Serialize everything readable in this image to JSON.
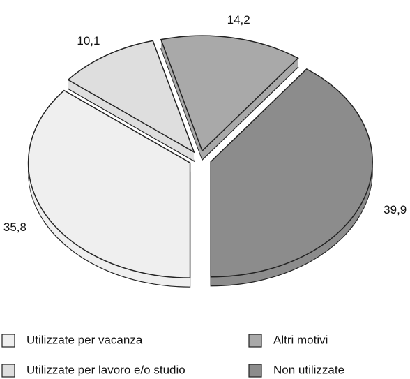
{
  "chart_data": {
    "type": "pie",
    "categories": [
      "Utilizzate per vacanza",
      "Utilizzate per lavoro e/o studio",
      "Altri motivi",
      "Non utilizzate"
    ],
    "values": [
      35.8,
      10.1,
      14.2,
      39.9
    ],
    "value_labels": [
      "35,8",
      "10,1",
      "14,2",
      "39,9"
    ],
    "colors": [
      "#efefef",
      "#dedede",
      "#a9a9a9",
      "#8c8c8c"
    ]
  }
}
